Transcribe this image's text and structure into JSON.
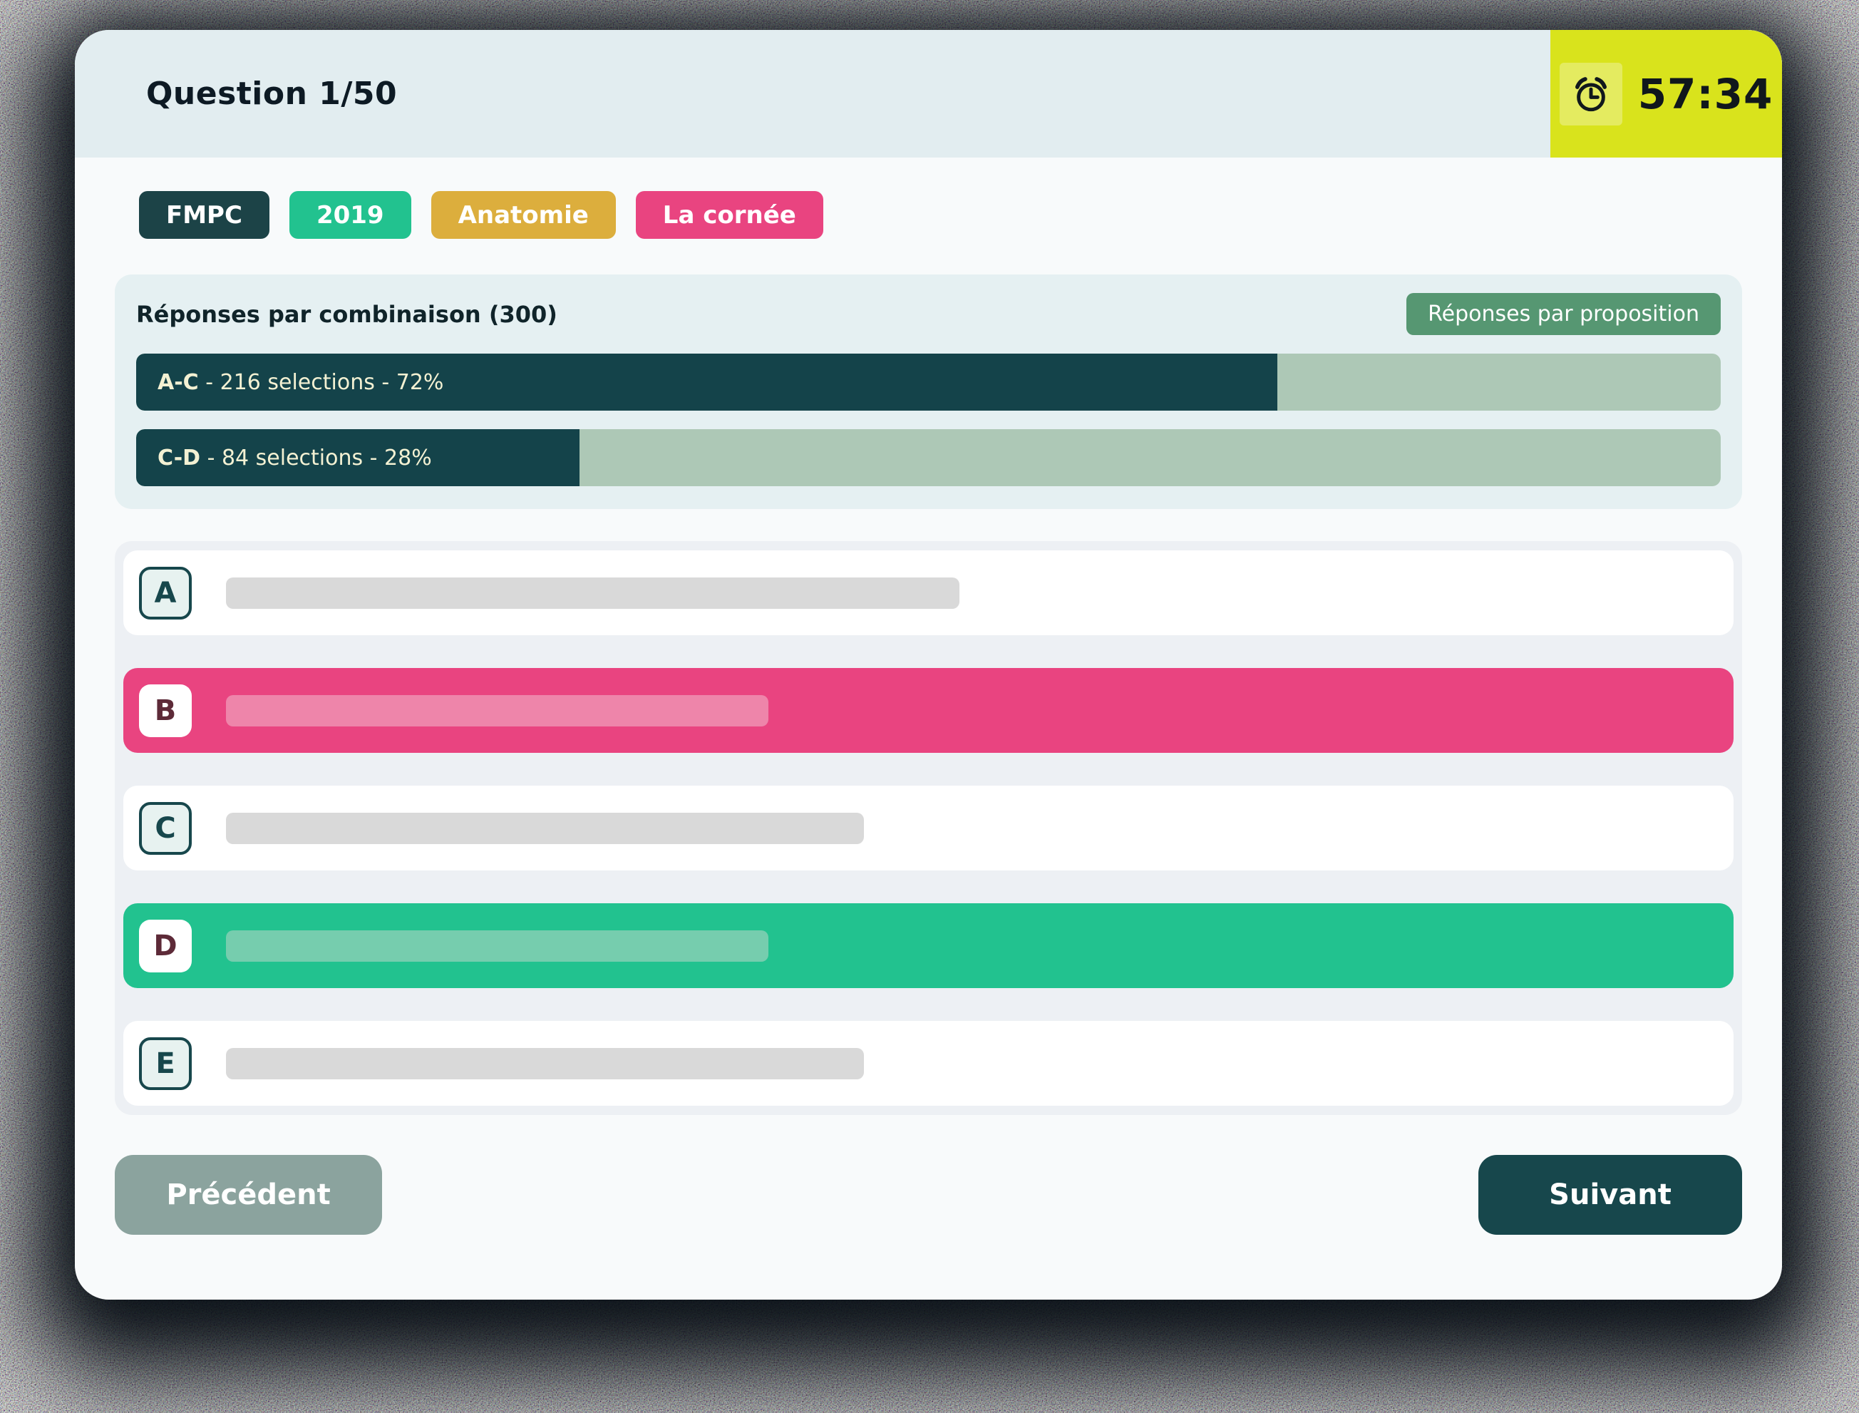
{
  "header": {
    "title": "Question 1/50",
    "question_number": 1,
    "question_total": 50,
    "timer": "57:34",
    "timer_icon": "alarm-clock-icon",
    "timer_bg_color": "#d9e31c"
  },
  "tags": [
    {
      "label": "FMPC",
      "color": "#1c4347"
    },
    {
      "label": "2019",
      "color": "#22c28f"
    },
    {
      "label": "Anatomie",
      "color": "#dcae3d"
    },
    {
      "label": "La cornée",
      "color": "#e94480"
    }
  ],
  "stats": {
    "heading": "Réponses par combinaison (300)",
    "total_responses": 300,
    "toggle_button": "Réponses par proposition",
    "chart_data": {
      "type": "bar",
      "categories": [
        "A-C",
        "C-D"
      ],
      "values": [
        72,
        28
      ],
      "selections": [
        216,
        84
      ],
      "unit": "%",
      "title": "Réponses par combinaison (300)"
    },
    "bars": [
      {
        "combo": "A-C",
        "selections": 216,
        "percent": 72,
        "detail": " - 216 selections - 72%"
      },
      {
        "combo": "C-D",
        "selections": 84,
        "percent": 28,
        "detail": " - 84 selections - 28%"
      }
    ],
    "bar_fill_color": "#14434a",
    "bar_track_color": "#adc8b6"
  },
  "answers": [
    {
      "letter": "A",
      "state": "default",
      "placeholder_width_pct": 46
    },
    {
      "letter": "B",
      "state": "selected-pink",
      "placeholder_width_pct": 34
    },
    {
      "letter": "C",
      "state": "default",
      "placeholder_width_pct": 40
    },
    {
      "letter": "D",
      "state": "selected-green",
      "placeholder_width_pct": 34
    },
    {
      "letter": "E",
      "state": "default",
      "placeholder_width_pct": 40
    }
  ],
  "footer": {
    "prev_label": "Précédent",
    "next_label": "Suivant"
  },
  "colors": {
    "card_bg": "#f8fafb",
    "header_bg": "#e2edf0",
    "answers_panel_bg": "#edf0f4",
    "stats_panel_bg": "#e5f0f2",
    "selected_pink": "#e94480",
    "selected_green": "#22c28f",
    "dark_teal": "#17474c",
    "prev_button": "#8ba39e",
    "toggle_green": "#569772"
  }
}
